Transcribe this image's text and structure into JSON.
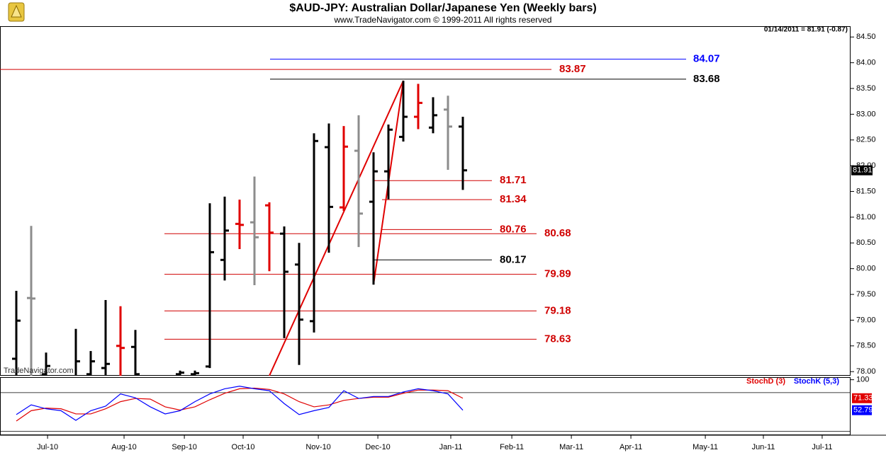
{
  "chart_data": [
    {
      "type": "ohlc",
      "title": "$AUD-JPY:  Australian Dollar/Japanese Yen  (Weekly bars)",
      "subtitle": "www.TradeNavigator.com © 1999-2011 All rights reserved",
      "info": "01/14/2011 = 81.91 (-0.87)",
      "watermark": "TradeNavigator.com",
      "x": [
        0,
        1,
        2,
        4,
        5,
        6,
        7,
        8,
        11,
        12,
        13,
        14,
        15,
        16,
        17,
        18,
        19,
        20,
        21,
        22,
        23,
        24,
        25,
        26,
        27,
        28,
        29,
        30
      ],
      "open": [
        78.25,
        79.43,
        77.95,
        77.9,
        77.95,
        78.07,
        78.5,
        78.48,
        77.95,
        77.95,
        78.1,
        80.17,
        80.87,
        80.9,
        81.23,
        80.68,
        80.08,
        78.98,
        82.36,
        81.19,
        82.29,
        81.3,
        81.89,
        82.56,
        82.95,
        82.74,
        83.09,
        82.76
      ],
      "high": [
        79.57,
        80.83,
        78.37,
        78.83,
        78.4,
        79.39,
        79.27,
        78.81,
        78.02,
        78.02,
        81.27,
        81.4,
        81.34,
        81.79,
        81.29,
        80.82,
        80.5,
        82.63,
        82.82,
        82.77,
        82.98,
        82.26,
        82.8,
        83.65,
        83.59,
        83.33,
        83.36,
        82.95
      ],
      "low": [
        77.8,
        77.8,
        77.8,
        77.8,
        77.8,
        77.8,
        77.8,
        77.8,
        77.6,
        77.6,
        78.07,
        79.77,
        80.38,
        79.68,
        79.95,
        78.65,
        78.13,
        78.76,
        80.31,
        81.12,
        80.42,
        79.69,
        81.35,
        82.47,
        82.71,
        82.63,
        81.92,
        81.53
      ],
      "close": [
        78.99,
        79.42,
        78.11,
        78.2,
        78.2,
        78.15,
        78.46,
        77.95,
        77.98,
        77.97,
        80.32,
        80.74,
        80.85,
        80.61,
        80.7,
        79.94,
        79.01,
        82.48,
        81.2,
        82.37,
        81.07,
        81.89,
        82.7,
        82.95,
        83.22,
        82.98,
        82.76,
        81.91
      ],
      "bar_colors": [
        "#000000",
        "#8c8c8c",
        "#000000",
        "#000000",
        "#000000",
        "#000000",
        "#e00000",
        "#000000",
        "#000000",
        "#000000",
        "#000000",
        "#000000",
        "#e00000",
        "#8c8c8c",
        "#e00000",
        "#000000",
        "#000000",
        "#000000",
        "#000000",
        "#e00000",
        "#8c8c8c",
        "#000000",
        "#000000",
        "#000000",
        "#e00000",
        "#000000",
        "#8c8c8c",
        "#000000"
      ],
      "xlim": [
        -1.0952,
        56.0476
      ],
      "xticks": [
        {
          "value": 2.1,
          "label": "Jul-10"
        },
        {
          "value": 7.24,
          "label": "Aug-10"
        },
        {
          "value": 11.29,
          "label": "Sep-10"
        },
        {
          "value": 15.24,
          "label": "Oct-10"
        },
        {
          "value": 20.29,
          "label": "Nov-10"
        },
        {
          "value": 24.29,
          "label": "Dec-10"
        },
        {
          "value": 29.19,
          "label": "Jan-11"
        },
        {
          "value": 33.29,
          "label": "Feb-11"
        },
        {
          "value": 37.29,
          "label": "Mar-11"
        },
        {
          "value": 41.29,
          "label": "Apr-11"
        },
        {
          "value": 46.29,
          "label": "May-11"
        },
        {
          "value": 50.19,
          "label": "Jun-11"
        },
        {
          "value": 54.14,
          "label": "Jul-11"
        }
      ],
      "ylim": [
        77.92,
        84.71
      ],
      "yticks": [
        {
          "value": 78,
          "label": "78.00"
        },
        {
          "value": 78.5,
          "label": "78.50"
        },
        {
          "value": 79,
          "label": "79.00"
        },
        {
          "value": 79.5,
          "label": "79.50"
        },
        {
          "value": 80,
          "label": "80.00"
        },
        {
          "value": 80.5,
          "label": "80.50"
        },
        {
          "value": 81,
          "label": "81.00"
        },
        {
          "value": 81.5,
          "label": "81.50"
        },
        {
          "value": 82,
          "label": "82.00"
        },
        {
          "value": 82.5,
          "label": "82.50"
        },
        {
          "value": 83,
          "label": "83.00"
        },
        {
          "value": 83.5,
          "label": "83.50"
        },
        {
          "value": 84,
          "label": "84.00"
        },
        {
          "value": 84.5,
          "label": "84.50"
        }
      ],
      "levels": [
        {
          "value": 84.07,
          "color": "#0000ff"
        },
        {
          "value": 83.87,
          "color": "#d00000"
        },
        {
          "value": 83.68,
          "color": "#000000"
        },
        {
          "value": 81.71,
          "color": "#d00000"
        },
        {
          "value": 81.34,
          "color": "#d00000"
        },
        {
          "value": 80.76,
          "color": "#d00000"
        },
        {
          "value": 80.68,
          "color": "#d00000"
        },
        {
          "value": 80.17,
          "color": "#000000"
        },
        {
          "value": 79.89,
          "color": "#d00000"
        },
        {
          "value": 79.18,
          "color": "#d00000"
        },
        {
          "value": 78.63,
          "color": "#d00000"
        }
      ]
    },
    {
      "type": "line",
      "x": [
        0,
        1,
        2,
        3,
        4,
        5,
        6,
        7,
        8,
        9,
        10,
        11,
        12,
        13,
        14,
        15,
        16,
        17,
        18,
        19,
        20,
        21,
        22,
        23,
        24,
        25,
        26,
        27,
        28,
        29,
        30
      ],
      "series": [
        {
          "name": "StochD (3)",
          "color": "#e00000",
          "values": [
            36,
            52,
            56,
            55,
            47,
            47,
            55,
            66,
            71,
            70,
            58,
            53,
            58,
            69,
            79,
            86,
            87,
            85,
            78,
            66,
            58,
            61,
            68,
            71,
            73,
            73,
            79,
            84,
            84,
            83,
            71.33
          ]
        },
        {
          "name": "StochK (5,3)",
          "color": "#0000ff",
          "values": [
            46,
            61,
            55,
            52,
            37,
            52,
            59,
            78,
            72,
            58,
            47,
            52,
            66,
            78,
            86,
            90,
            86,
            83,
            63,
            46,
            52,
            57,
            83,
            71,
            74,
            74,
            81,
            86,
            83,
            78,
            52.79
          ]
        }
      ],
      "ylim": [
        14,
        104
      ],
      "yticks": [
        100
      ],
      "reference_lines": [
        80,
        20
      ]
    }
  ]
}
